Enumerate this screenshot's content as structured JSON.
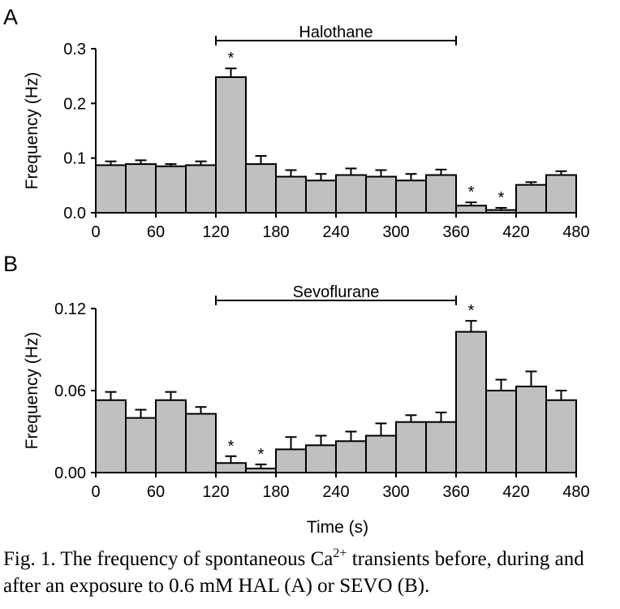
{
  "chart_data": [
    {
      "type": "bar",
      "panel_label": "A",
      "ylabel": "Frequency (Hz)",
      "xlabel": "",
      "x_bin_starts": [
        0,
        30,
        60,
        90,
        120,
        150,
        180,
        210,
        240,
        270,
        300,
        330,
        360,
        390,
        420,
        450
      ],
      "bin_width": 30,
      "values": [
        0.087,
        0.089,
        0.085,
        0.087,
        0.248,
        0.089,
        0.066,
        0.059,
        0.069,
        0.066,
        0.059,
        0.069,
        0.013,
        0.005,
        0.051,
        0.069
      ],
      "errors": [
        0.007,
        0.007,
        0.004,
        0.007,
        0.016,
        0.015,
        0.012,
        0.012,
        0.012,
        0.012,
        0.012,
        0.01,
        0.006,
        0.004,
        0.005,
        0.007
      ],
      "significant": [
        false,
        false,
        false,
        false,
        true,
        false,
        false,
        false,
        false,
        false,
        false,
        false,
        true,
        true,
        false,
        false
      ],
      "ylim": [
        0,
        0.3
      ],
      "yticks": [
        "0.0",
        "0.1",
        "0.2",
        "0.3"
      ],
      "xlim": [
        0,
        480
      ],
      "xticks": [
        "0",
        "60",
        "120",
        "180",
        "240",
        "300",
        "360",
        "420",
        "480"
      ],
      "treatment": {
        "label": "Halothane",
        "start": 120,
        "end": 360
      },
      "significance_marker": "*",
      "bar_color": "#c0c0c0"
    },
    {
      "type": "bar",
      "panel_label": "B",
      "ylabel": "Frequency (Hz)",
      "xlabel": "Time (s)",
      "x_bin_starts": [
        0,
        30,
        60,
        90,
        120,
        150,
        180,
        210,
        240,
        270,
        300,
        330,
        360,
        390,
        420,
        450
      ],
      "bin_width": 30,
      "values": [
        0.053,
        0.04,
        0.053,
        0.043,
        0.007,
        0.003,
        0.017,
        0.02,
        0.023,
        0.027,
        0.037,
        0.037,
        0.103,
        0.06,
        0.063,
        0.053
      ],
      "errors": [
        0.006,
        0.006,
        0.006,
        0.005,
        0.005,
        0.003,
        0.009,
        0.007,
        0.007,
        0.009,
        0.005,
        0.007,
        0.008,
        0.008,
        0.011,
        0.007
      ],
      "significant": [
        false,
        false,
        false,
        false,
        true,
        true,
        false,
        false,
        false,
        false,
        false,
        false,
        true,
        false,
        false,
        false
      ],
      "ylim": [
        0,
        0.12
      ],
      "yticks": [
        "0.00",
        "0.06",
        "0.12"
      ],
      "xlim": [
        0,
        480
      ],
      "xticks": [
        "0",
        "60",
        "120",
        "180",
        "240",
        "300",
        "360",
        "420",
        "480"
      ],
      "treatment": {
        "label": "Sevoflurane",
        "start": 120,
        "end": 360
      },
      "significance_marker": "*",
      "bar_color": "#c0c0c0"
    }
  ],
  "caption": {
    "text_before": "Fig. 1. The frequency of spontaneous Ca",
    "superscript": "2+",
    "text_after": " transients before, during and after an exposure to 0.6 mM HAL (A) or SEVO (B)."
  }
}
